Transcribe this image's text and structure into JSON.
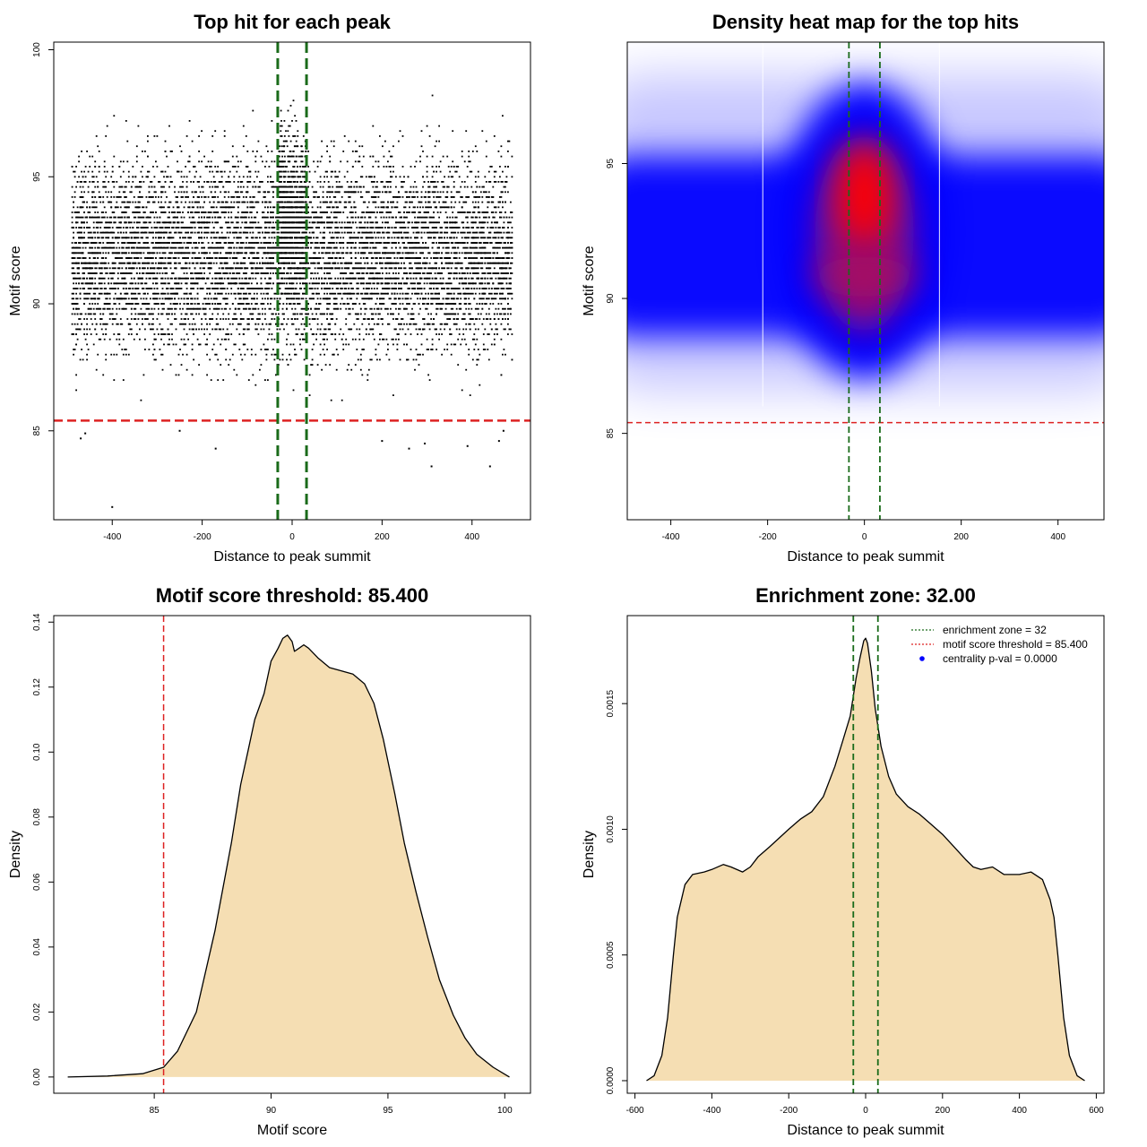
{
  "colors": {
    "threshold_line": "#dd2222",
    "zone_line": "#1a6b1a",
    "density_fill": "#f5deb3",
    "heat_low": "#0000ff",
    "heat_high": "#ff0000",
    "pval_point": "#0000ff"
  },
  "chart_data": [
    {
      "type": "scatter",
      "title": "Top hit for each peak",
      "xlabel": "Distance to peak summit",
      "ylabel": "Motif score",
      "xlim": [
        -530,
        530
      ],
      "ylim": [
        81.5,
        100.3
      ],
      "xticks": [
        -400,
        -200,
        0,
        200,
        400
      ],
      "yticks": [
        85,
        90,
        95,
        100
      ],
      "grid": false,
      "point_color": "#000000",
      "x_range_of_points": [
        -490,
        490
      ],
      "y_range_of_points": [
        82,
        99.5
      ],
      "y_mode": 92,
      "center_enriched_zone": [
        -30,
        32
      ],
      "outliers": [
        [
          -400,
          82.0
        ],
        [
          -470,
          84.7
        ],
        [
          -460,
          84.9
        ],
        [
          -170,
          84.3
        ],
        [
          -250,
          85.0
        ],
        [
          260,
          84.3
        ],
        [
          295,
          84.5
        ],
        [
          310,
          83.6
        ],
        [
          390,
          84.4
        ],
        [
          440,
          83.6
        ],
        [
          460,
          84.6
        ],
        [
          470,
          85.0
        ],
        [
          200,
          84.6
        ]
      ],
      "threshold": 85.4,
      "enrichment_zone": [
        -32,
        32
      ]
    },
    {
      "type": "heatmap",
      "title": "Density heat map for the top hits",
      "xlabel": "Distance to peak summit",
      "ylabel": "Motif score",
      "xlim": [
        -490,
        495
      ],
      "ylim": [
        81.8,
        99.5
      ],
      "xticks": [
        -400,
        -200,
        0,
        200,
        400
      ],
      "yticks": [
        85,
        90,
        95
      ],
      "grid": false,
      "hotspot": {
        "x": 0,
        "y": 93.8
      },
      "band_center_y": 91.5,
      "white_vlines_x": [
        -210,
        155
      ],
      "threshold": 85.4,
      "enrichment_zone": [
        -32,
        32
      ]
    },
    {
      "type": "area",
      "title": "Motif score threshold: 85.400",
      "xlabel": "Motif score",
      "ylabel": "Density",
      "xlim": [
        80.7,
        101.1
      ],
      "ylim": [
        -0.005,
        0.142
      ],
      "xticks": [
        85,
        90,
        95,
        100
      ],
      "yticks": [
        0.0,
        0.02,
        0.04,
        0.06,
        0.08,
        0.1,
        0.12,
        0.14
      ],
      "ytick_labels": [
        "0.00",
        "0.02",
        "0.04",
        "0.06",
        "0.08",
        "0.10",
        "0.12",
        "0.14"
      ],
      "grid": false,
      "x": [
        81.3,
        83.0,
        84.5,
        85.4,
        86.0,
        86.8,
        87.6,
        88.3,
        88.7,
        89.0,
        89.3,
        89.7,
        90.0,
        90.3,
        90.5,
        90.7,
        90.9,
        91.0,
        91.2,
        91.4,
        91.6,
        92.0,
        92.5,
        93.0,
        93.5,
        94.0,
        94.4,
        94.8,
        95.3,
        95.7,
        96.2,
        96.7,
        97.2,
        97.8,
        98.3,
        98.8,
        99.5,
        100.2
      ],
      "y": [
        0.0,
        0.0003,
        0.001,
        0.003,
        0.008,
        0.02,
        0.045,
        0.072,
        0.09,
        0.1,
        0.11,
        0.118,
        0.128,
        0.132,
        0.135,
        0.136,
        0.134,
        0.131,
        0.132,
        0.133,
        0.132,
        0.129,
        0.126,
        0.125,
        0.124,
        0.121,
        0.115,
        0.104,
        0.087,
        0.072,
        0.057,
        0.043,
        0.03,
        0.019,
        0.012,
        0.007,
        0.003,
        0.0
      ],
      "threshold": 85.4
    },
    {
      "type": "area",
      "title": "Enrichment zone: 32.00",
      "xlabel": "Distance to peak summit",
      "ylabel": "Density",
      "xlim": [
        -620,
        620
      ],
      "ylim": [
        -5e-05,
        0.00185
      ],
      "xticks": [
        -600,
        -400,
        -200,
        0,
        200,
        400,
        600
      ],
      "yticks": [
        0.0,
        0.0005,
        0.001,
        0.0015
      ],
      "ytick_labels": [
        "0.0000",
        "0.0005",
        "0.0010",
        "0.0015"
      ],
      "grid": false,
      "x": [
        -570,
        -550,
        -530,
        -515,
        -500,
        -490,
        -470,
        -450,
        -420,
        -400,
        -370,
        -350,
        -320,
        -300,
        -280,
        -250,
        -200,
        -170,
        -140,
        -110,
        -80,
        -60,
        -40,
        -25,
        -15,
        -5,
        0,
        5,
        15,
        25,
        40,
        60,
        80,
        110,
        140,
        170,
        200,
        230,
        260,
        280,
        300,
        330,
        360,
        400,
        430,
        460,
        480,
        490,
        500,
        515,
        530,
        550,
        570
      ],
      "y": [
        0.0,
        2e-05,
        0.0001,
        0.00025,
        0.0005,
        0.00065,
        0.00078,
        0.00082,
        0.00083,
        0.00084,
        0.00086,
        0.00085,
        0.00083,
        0.00085,
        0.00089,
        0.00093,
        0.001,
        0.00104,
        0.00107,
        0.00113,
        0.00125,
        0.00135,
        0.00145,
        0.0016,
        0.00168,
        0.00175,
        0.00176,
        0.00174,
        0.00163,
        0.00148,
        0.00133,
        0.00121,
        0.00114,
        0.00109,
        0.00106,
        0.00102,
        0.00098,
        0.00093,
        0.00088,
        0.00085,
        0.00084,
        0.00085,
        0.00082,
        0.00082,
        0.00083,
        0.0008,
        0.00072,
        0.00065,
        0.0005,
        0.00025,
        0.0001,
        2e-05,
        0.0
      ],
      "enrichment_zone": [
        -32,
        32
      ],
      "legend": {
        "placement": "top-right",
        "entries": [
          {
            "label": "enrichment zone = 32",
            "kind": "dotted-line",
            "color": "#1a6b1a"
          },
          {
            "label": "motif score threshold = 85.400",
            "kind": "dotted-line",
            "color": "#dd2222"
          },
          {
            "label": "centrality p-val = 0.0000",
            "kind": "point",
            "color": "#0000ff"
          }
        ]
      }
    }
  ]
}
